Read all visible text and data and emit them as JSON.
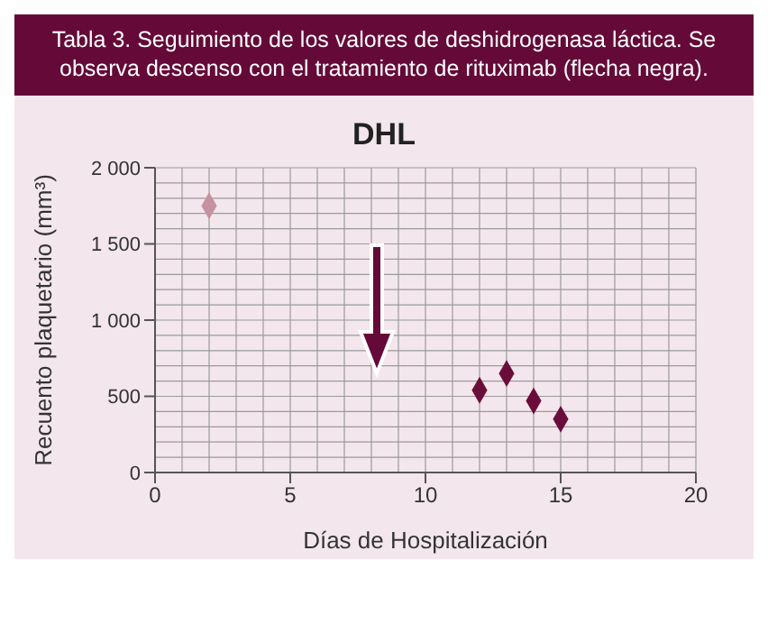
{
  "chart_data": {
    "type": "scatter",
    "title": "Tabla 3. Seguimiento de los valores de deshidrogenasa láctica. Se observa descenso con el tratamiento de rituximab (flecha negra).",
    "subtitle": "DHL",
    "xlabel": "Días de Hospitalización",
    "ylabel": "Recuento plaquetario (mm³)",
    "series": [
      {
        "color": "#c8919f",
        "x": [
          2
        ],
        "values": [
          1750
        ]
      },
      {
        "color": "#6b0d3a",
        "x": [
          12,
          13,
          14,
          15
        ],
        "values": [
          540,
          650,
          470,
          350
        ]
      }
    ],
    "xlim": [
      0,
      20
    ],
    "xticks": [
      0,
      5,
      10,
      15,
      20
    ],
    "ylim": [
      0,
      2000
    ],
    "yticks": [
      0,
      {
        "value": 500,
        "label": "500"
      },
      {
        "value": 1000,
        "label": "1 000"
      },
      {
        "value": 1500,
        "label": "1 500"
      },
      {
        "value": 2000,
        "label": "2 000"
      }
    ],
    "grid": true,
    "marker": "diamond"
  }
}
